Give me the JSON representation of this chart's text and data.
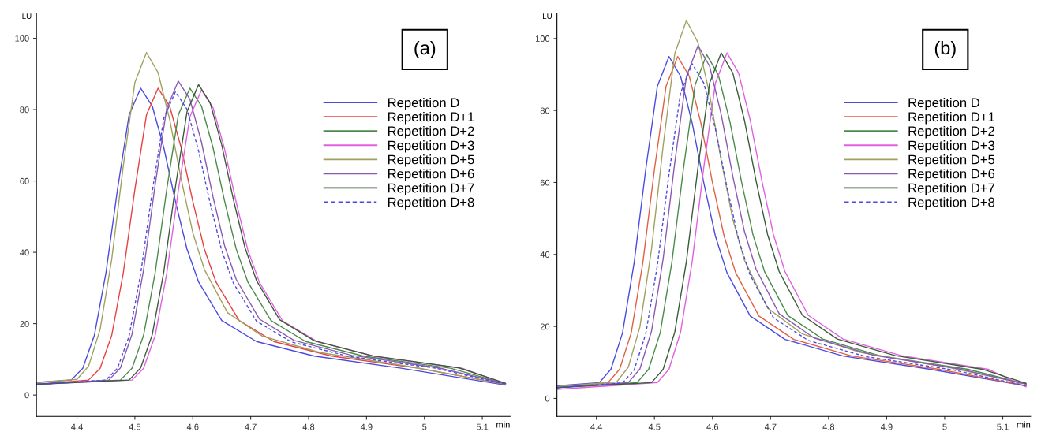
{
  "chart_data": [
    {
      "type": "line",
      "xlabel": "min",
      "ylabel": "LU",
      "annotations": [
        "(a)"
      ],
      "xlim": [
        4.33,
        5.148
      ],
      "ylim": [
        -6,
        107
      ],
      "xticks": [
        4.4,
        4.5,
        4.6,
        4.7,
        4.8,
        4.9,
        5,
        5.1
      ],
      "yticks": [
        0,
        20,
        40,
        60,
        80,
        100
      ],
      "grid": false,
      "legend": "top right",
      "marker": "none",
      "series": [
        {
          "name": "Repetition D",
          "color": "#4a4ae0",
          "x": [
            4.33,
            4.39,
            4.41,
            4.43,
            4.45,
            4.47,
            4.49,
            4.51,
            4.53,
            4.55,
            4.57,
            4.59,
            4.61,
            4.65,
            4.71,
            4.81,
            4.96,
            5.14
          ],
          "values": [
            3.5,
            4.2,
            7.5,
            16.7,
            34.2,
            57.6,
            78.5,
            86,
            81.0,
            69.3,
            54.3,
            40.9,
            31.7,
            20.9,
            15.0,
            10.9,
            7.5,
            2.8
          ]
        },
        {
          "name": "Repetition D+1",
          "color": "#e84040",
          "x": [
            4.33,
            4.42,
            4.44,
            4.46,
            4.48,
            4.5,
            4.52,
            4.54,
            4.56,
            4.58,
            4.6,
            4.62,
            4.64,
            4.68,
            4.74,
            4.84,
            4.99,
            5.14
          ],
          "values": [
            3.0,
            4.2,
            7.5,
            16.7,
            34.2,
            57.6,
            78.5,
            86,
            81.0,
            69.3,
            54.3,
            40.9,
            31.7,
            20.9,
            15.0,
            10.9,
            7.5,
            3.0
          ]
        },
        {
          "name": "Repetition D+2",
          "color": "#4a8a4a",
          "x": [
            4.33,
            4.475,
            4.495,
            4.515,
            4.535,
            4.555,
            4.575,
            4.595,
            4.615,
            4.635,
            4.655,
            4.675,
            4.695,
            4.735,
            4.795,
            4.895,
            5.045,
            5.14
          ],
          "values": [
            3.0,
            4.2,
            7.5,
            16.7,
            34.2,
            57.6,
            78.5,
            86,
            81.0,
            69.3,
            54.3,
            40.9,
            31.7,
            20.9,
            15.0,
            10.9,
            7.5,
            3.2
          ]
        },
        {
          "name": "Repetition D+3",
          "color": "#e060e0",
          "x": [
            4.33,
            4.495,
            4.515,
            4.535,
            4.555,
            4.575,
            4.595,
            4.615,
            4.635,
            4.655,
            4.675,
            4.695,
            4.715,
            4.755,
            4.815,
            4.915,
            5.065,
            5.14
          ],
          "values": [
            3.0,
            4.2,
            7.5,
            16.6,
            34.0,
            57.3,
            78.0,
            85.5,
            80.5,
            68.9,
            54.0,
            40.7,
            31.6,
            20.8,
            15.0,
            10.8,
            7.5,
            3.1
          ]
        },
        {
          "name": "Repetition D+5",
          "color": "#a0a060",
          "x": [
            4.33,
            4.4,
            4.42,
            4.44,
            4.46,
            4.48,
            4.5,
            4.52,
            4.54,
            4.56,
            4.58,
            4.6,
            4.62,
            4.66,
            4.72,
            4.82,
            4.97,
            5.14
          ],
          "values": [
            3.5,
            4.4,
            8.1,
            18.4,
            38.0,
            64.2,
            87.6,
            96,
            90.4,
            77.3,
            60.5,
            45.5,
            35.2,
            23.1,
            16.5,
            11.9,
            8.1,
            3.0
          ]
        },
        {
          "name": "Repetition D+6",
          "color": "#8a5ab0",
          "x": [
            4.33,
            4.455,
            4.475,
            4.495,
            4.515,
            4.535,
            4.555,
            4.575,
            4.595,
            4.615,
            4.635,
            4.655,
            4.675,
            4.715,
            4.775,
            4.875,
            5.025,
            5.14
          ],
          "values": [
            3.0,
            4.2,
            7.6,
            17.0,
            35.0,
            58.9,
            80.3,
            88,
            82.9,
            70.9,
            55.5,
            41.8,
            32.4,
            21.3,
            15.3,
            11.1,
            7.6,
            3.2
          ]
        },
        {
          "name": "Repetition D+7",
          "color": "#3a5a3a",
          "x": [
            4.33,
            4.49,
            4.51,
            4.53,
            4.55,
            4.57,
            4.59,
            4.61,
            4.63,
            4.65,
            4.67,
            4.69,
            4.71,
            4.75,
            4.81,
            4.91,
            5.06,
            5.14
          ],
          "values": [
            3.0,
            4.2,
            7.6,
            16.9,
            34.6,
            58.3,
            79.4,
            87,
            81.9,
            70.1,
            54.9,
            41.4,
            32.1,
            21.1,
            15.2,
            11.0,
            7.6,
            3.3
          ]
        },
        {
          "name": "Repetition D+8",
          "color": "#4a4ae0",
          "line_style": "dashed",
          "x": [
            4.33,
            4.45,
            4.47,
            4.49,
            4.51,
            4.53,
            4.55,
            4.57,
            4.59,
            4.61,
            4.63,
            4.65,
            4.67,
            4.71,
            4.77,
            4.87,
            5.02,
            5.14
          ],
          "values": [
            3.0,
            4.2,
            7.5,
            16.5,
            33.9,
            57.0,
            77.6,
            85,
            80.1,
            68.5,
            53.7,
            40.5,
            31.4,
            20.7,
            14.9,
            10.8,
            7.5,
            3.0
          ]
        }
      ]
    },
    {
      "type": "line",
      "xlabel": "min",
      "ylabel": "LU",
      "annotations": [
        "(b)"
      ],
      "xlim": [
        4.332,
        5.148
      ],
      "ylim": [
        -5,
        107
      ],
      "xticks": [
        4.4,
        4.5,
        4.6,
        4.7,
        4.8,
        4.9,
        5,
        5.1
      ],
      "yticks": [
        0,
        20,
        40,
        60,
        80,
        100
      ],
      "grid": false,
      "legend": "top right",
      "marker": "none",
      "series": [
        {
          "name": "Repetition D",
          "color": "#4a4ae0",
          "x": [
            4.332,
            4.405,
            4.425,
            4.445,
            4.465,
            4.485,
            4.505,
            4.525,
            4.545,
            4.565,
            4.585,
            4.605,
            4.625,
            4.665,
            4.725,
            4.825,
            4.975,
            5.14
          ],
          "values": [
            3.5,
            4.4,
            8.1,
            18.2,
            37.7,
            63.6,
            86.7,
            95,
            89.5,
            76.5,
            59.9,
            45.1,
            34.9,
            22.9,
            16.4,
            11.8,
            8.1,
            3.5
          ]
        },
        {
          "name": "Repetition D+1",
          "color": "#e06040",
          "x": [
            4.332,
            4.42,
            4.44,
            4.46,
            4.48,
            4.5,
            4.52,
            4.54,
            4.56,
            4.58,
            4.6,
            4.62,
            4.64,
            4.68,
            4.74,
            4.84,
            4.99,
            5.14
          ],
          "values": [
            3.0,
            4.4,
            8.1,
            18.2,
            37.7,
            63.6,
            86.7,
            95,
            89.5,
            76.5,
            59.9,
            45.1,
            34.9,
            22.9,
            16.4,
            11.8,
            8.1,
            3.5
          ]
        },
        {
          "name": "Repetition D+2",
          "color": "#4a8a4a",
          "x": [
            4.332,
            4.47,
            4.49,
            4.51,
            4.53,
            4.55,
            4.57,
            4.59,
            4.61,
            4.63,
            4.65,
            4.67,
            4.69,
            4.73,
            4.79,
            4.89,
            5.04,
            5.14
          ],
          "values": [
            3.0,
            4.4,
            8.1,
            18.3,
            37.8,
            63.9,
            87.1,
            95.5,
            89.9,
            76.9,
            60.2,
            45.3,
            35.1,
            23.0,
            16.5,
            11.8,
            8.1,
            4.0
          ]
        },
        {
          "name": "Repetition D+3",
          "color": "#e060e0",
          "x": [
            4.332,
            4.505,
            4.525,
            4.545,
            4.565,
            4.585,
            4.605,
            4.625,
            4.645,
            4.665,
            4.685,
            4.705,
            4.725,
            4.765,
            4.825,
            4.925,
            5.075,
            5.14
          ],
          "values": [
            2.5,
            4.4,
            8.1,
            18.4,
            38.0,
            64.2,
            87.6,
            96,
            90.4,
            77.3,
            60.5,
            45.5,
            35.2,
            23.1,
            16.5,
            11.9,
            8.1,
            3.2
          ]
        },
        {
          "name": "Repetition D+5",
          "color": "#a0a060",
          "x": [
            4.332,
            4.435,
            4.455,
            4.475,
            4.495,
            4.515,
            4.535,
            4.555,
            4.575,
            4.595,
            4.615,
            4.635,
            4.655,
            4.695,
            4.755,
            4.855,
            5.005,
            5.14
          ],
          "values": [
            3.3,
            4.6,
            8.7,
            19.9,
            41.5,
            70.2,
            95.8,
            105,
            98.9,
            84.5,
            66.1,
            49.7,
            38.4,
            25.1,
            17.9,
            12.8,
            8.7,
            4.0
          ]
        },
        {
          "name": "Repetition D+6",
          "color": "#8a5ab0",
          "x": [
            4.332,
            4.455,
            4.475,
            4.495,
            4.515,
            4.535,
            4.555,
            4.575,
            4.595,
            4.615,
            4.635,
            4.655,
            4.675,
            4.715,
            4.775,
            4.875,
            5.025,
            5.14
          ],
          "values": [
            3.0,
            4.4,
            8.2,
            18.7,
            38.8,
            65.5,
            89.4,
            98,
            92.3,
            78.9,
            61.7,
            46.4,
            35.9,
            23.5,
            16.8,
            12.1,
            8.2,
            4.0
          ]
        },
        {
          "name": "Repetition D+7",
          "color": "#3a5a3a",
          "x": [
            4.332,
            4.495,
            4.515,
            4.535,
            4.555,
            4.575,
            4.595,
            4.615,
            4.635,
            4.655,
            4.675,
            4.695,
            4.715,
            4.755,
            4.815,
            4.915,
            5.065,
            5.14
          ],
          "values": [
            3.0,
            4.4,
            8.1,
            18.4,
            38.0,
            64.2,
            87.6,
            96,
            90.4,
            77.3,
            60.5,
            45.5,
            35.2,
            23.1,
            16.5,
            11.9,
            8.1,
            4.2
          ]
        },
        {
          "name": "Repetition D+8",
          "color": "#4a4ae0",
          "line_style": "dashed",
          "x": [
            4.332,
            4.445,
            4.465,
            4.485,
            4.505,
            4.525,
            4.545,
            4.565,
            4.585,
            4.605,
            4.625,
            4.645,
            4.665,
            4.705,
            4.765,
            4.865,
            5.015,
            5.14
          ],
          "values": [
            3.0,
            4.3,
            7.9,
            17.9,
            36.9,
            62.2,
            84.9,
            93,
            87.6,
            74.9,
            58.6,
            44.1,
            34.2,
            22.4,
            16.1,
            11.6,
            7.9,
            3.5
          ]
        }
      ]
    }
  ]
}
